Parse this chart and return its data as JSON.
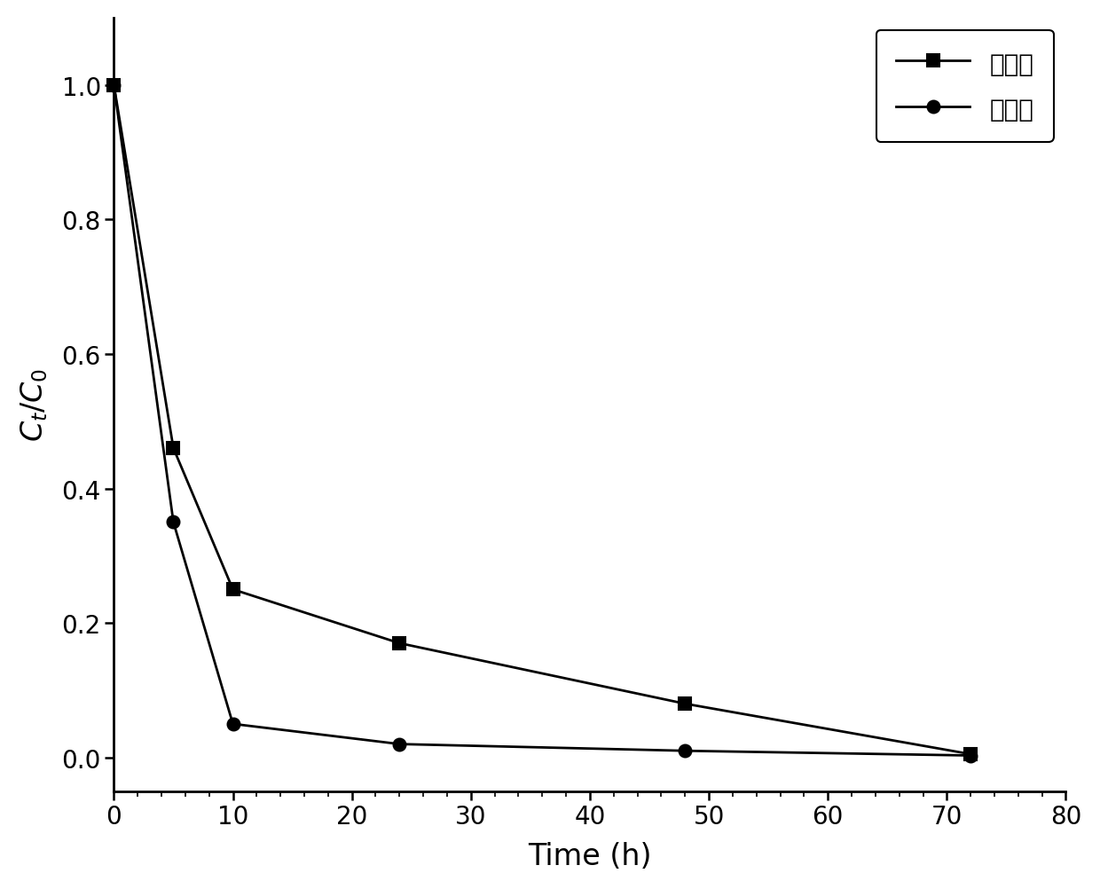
{
  "series": [
    {
      "label": "无光照",
      "x": [
        0,
        5,
        10,
        24,
        48,
        72
      ],
      "y": [
        1.0,
        0.46,
        0.25,
        0.17,
        0.08,
        0.005
      ],
      "marker": "s",
      "color": "#000000",
      "markersize": 10,
      "linewidth": 2.0
    },
    {
      "label": "有光照",
      "x": [
        0,
        5,
        10,
        24,
        48,
        72
      ],
      "y": [
        1.0,
        0.35,
        0.05,
        0.02,
        0.01,
        0.003
      ],
      "marker": "o",
      "color": "#000000",
      "markersize": 10,
      "linewidth": 2.0
    }
  ],
  "xlabel": "Time (h)",
  "ylabel_text": "$C_t/C_0$",
  "xlim": [
    0,
    80
  ],
  "ylim": [
    -0.05,
    1.1
  ],
  "xticks": [
    0,
    10,
    20,
    30,
    40,
    50,
    60,
    70,
    80
  ],
  "yticks": [
    0.0,
    0.2,
    0.4,
    0.6,
    0.8,
    1.0
  ],
  "legend_loc": "upper right",
  "background_color": "#ffffff",
  "spine_linewidth": 2.0,
  "tick_fontsize": 20,
  "label_fontsize": 24,
  "legend_fontsize": 20
}
